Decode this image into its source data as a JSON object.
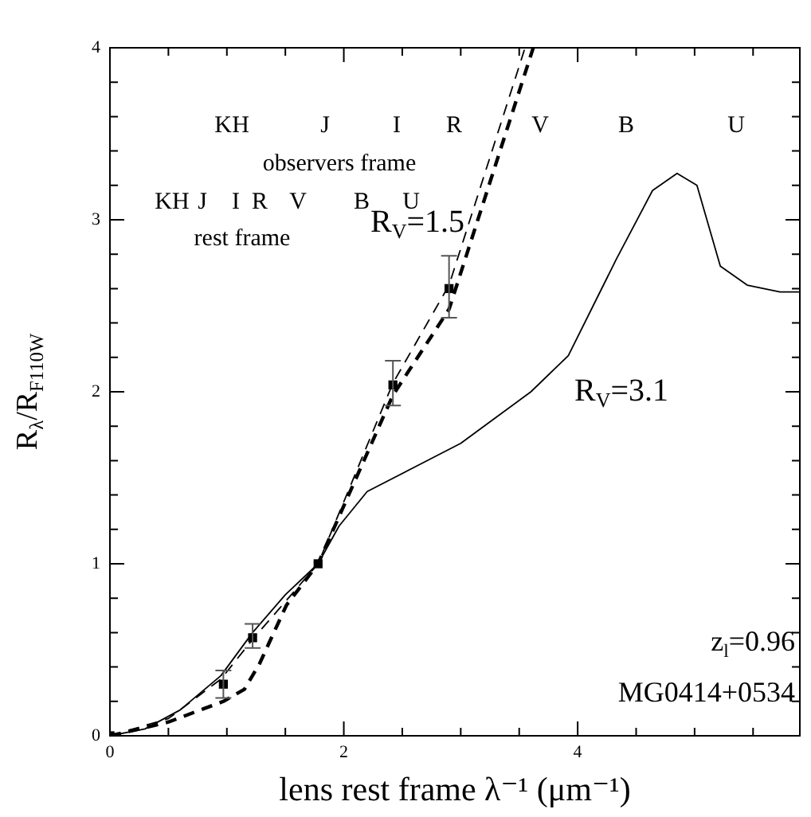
{
  "chart_data": {
    "type": "line",
    "xlabel": "lens rest frame λ⁻¹ (μm⁻¹)",
    "ylabel": "R$_{λ}$/R$_{F110W}$",
    "xlim": [
      0,
      5.9
    ],
    "ylim": [
      0,
      4
    ],
    "xticks": [
      0,
      {
        "value": 0.5,
        "label": null
      },
      {
        "value": 1,
        "label": null
      },
      {
        "value": 1.5,
        "label": null
      },
      2,
      {
        "value": 2.5,
        "label": null
      },
      {
        "value": 3,
        "label": null
      },
      {
        "value": 3.5,
        "label": null
      },
      4,
      {
        "value": 4.5,
        "label": null
      },
      {
        "value": 5,
        "label": null
      },
      {
        "value": 5.5,
        "label": null
      }
    ],
    "yticks": [
      0,
      {
        "value": 0.2,
        "label": null
      },
      {
        "value": 0.4,
        "label": null
      },
      {
        "value": 0.6,
        "label": null
      },
      {
        "value": 0.8,
        "label": null
      },
      1,
      {
        "value": 1.2,
        "label": null
      },
      {
        "value": 1.4,
        "label": null
      },
      {
        "value": 1.6,
        "label": null
      },
      {
        "value": 1.8,
        "label": null
      },
      2,
      {
        "value": 2.2,
        "label": null
      },
      {
        "value": 2.4,
        "label": null
      },
      {
        "value": 2.6,
        "label": null
      },
      {
        "value": 2.8,
        "label": null
      },
      3,
      {
        "value": 3.2,
        "label": null
      },
      {
        "value": 3.4,
        "label": null
      },
      {
        "value": 3.6,
        "label": null
      },
      {
        "value": 3.8,
        "label": null
      },
      4
    ],
    "grid": false,
    "legend": false,
    "series": [
      {
        "name": "R$_{V}$=3.1",
        "line_style": "solid",
        "color": "#000000",
        "x": [
          0,
          0.3,
          0.6,
          0.95,
          1.22,
          1.5,
          1.78,
          1.96,
          2.2,
          2.6,
          3.0,
          3.28,
          3.6,
          3.92,
          4.33,
          4.64,
          4.85,
          5.02,
          5.22,
          5.45,
          5.73,
          5.9
        ],
        "values": [
          0,
          0.04,
          0.15,
          0.35,
          0.6,
          0.82,
          1.0,
          1.22,
          1.42,
          1.56,
          1.7,
          1.84,
          2.0,
          2.21,
          2.77,
          3.17,
          3.27,
          3.2,
          2.73,
          2.62,
          2.58,
          2.58
        ]
      },
      {
        "name": "R$_{V}$=1.5",
        "line_style": "dashed",
        "color": "#000000",
        "x": [
          0,
          0.5,
          0.95,
          1.22,
          1.78,
          2.42,
          2.9,
          3.55
        ],
        "values": [
          0,
          0.1,
          0.33,
          0.56,
          1.0,
          2.05,
          2.62,
          4.0
        ]
      },
      {
        "line_style": "dashed",
        "color": "#000000",
        "x": [
          0,
          0.5,
          0.97,
          1.15,
          1.28,
          1.51,
          1.78,
          2.42,
          2.9,
          3.62
        ],
        "values": [
          0,
          0.08,
          0.2,
          0.27,
          0.42,
          0.76,
          1.0,
          1.98,
          2.48,
          4.0
        ]
      },
      {
        "type": "scatter",
        "marker": "square",
        "color": "#000000",
        "x": [
          0,
          0.97,
          1.22,
          1.78,
          2.42,
          2.9
        ],
        "values": [
          0,
          0.3,
          0.57,
          1.0,
          2.04,
          2.6
        ],
        "errors": [
          null,
          [
            0.22,
            0.38
          ],
          [
            0.51,
            0.65
          ],
          null,
          [
            1.92,
            2.18
          ],
          [
            2.43,
            2.79
          ]
        ]
      }
    ],
    "annotations": [
      "K",
      "H",
      "J",
      "I",
      "R",
      "V",
      "B",
      "U",
      "observers frame",
      "KH",
      "J",
      "I",
      "R",
      "V",
      "B",
      "U",
      "rest frame",
      "z$_{l}$=0.96",
      "MG0414+0534"
    ]
  }
}
